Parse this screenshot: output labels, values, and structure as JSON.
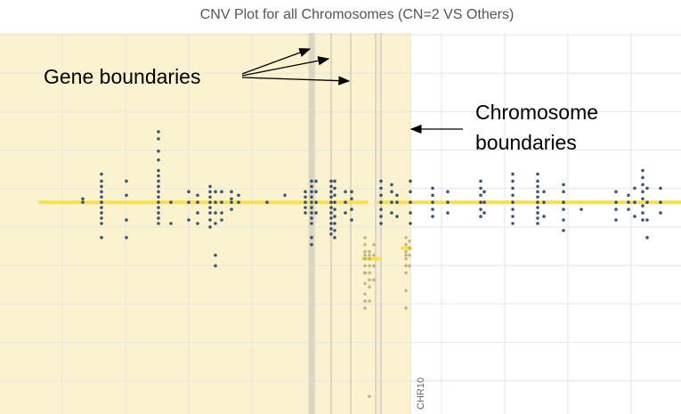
{
  "chart_data": {
    "type": "scatter",
    "title": "CNV Plot for all Chromosomes (CN=2 VS Others)",
    "xlabel": "",
    "ylabel": "",
    "grid": true,
    "chromosome_label": "CHR10",
    "annotations": {
      "gene_boundaries": "Gene boundaries",
      "chromosome_boundaries_line1": "Chromosome",
      "chromosome_boundaries_line2": "boundaries"
    },
    "colors": {
      "highlight_region": "#fbf3cf",
      "gene_boundary_band": "#d9d4c0",
      "segment": "#f7df52",
      "point_normal": "#1f3a5f",
      "point_other": "#b8aa78",
      "grid": "#e6e6e6"
    },
    "series": [
      {
        "name": "",
        "columns": [
          {
            "x": 93,
            "ys": [
              0.0,
              0.1
            ]
          },
          {
            "x": 114,
            "ys": [
              -0.6,
              -0.45,
              -0.3,
              -0.15,
              0.0,
              0.15,
              0.3,
              0.45,
              0.6,
              -1.0,
              0.8
            ]
          },
          {
            "x": 142,
            "ys": [
              -1.0,
              -0.5,
              0.2,
              0.6
            ]
          },
          {
            "x": 178,
            "ys": [
              -0.6,
              -0.45,
              -0.3,
              -0.15,
              0.0,
              0.15,
              0.3,
              0.45,
              0.6,
              0.75,
              0.9,
              1.2,
              1.45,
              1.8,
              2.0
            ]
          },
          {
            "x": 192,
            "ys": [
              -0.6,
              0.0
            ]
          },
          {
            "x": 212,
            "ys": [
              -0.5,
              0.0,
              0.3
            ]
          },
          {
            "x": 222,
            "ys": [
              -0.6,
              -0.3,
              0.0,
              0.2
            ]
          },
          {
            "x": 236,
            "ys": [
              -0.5,
              -0.3,
              -0.15,
              0.0,
              0.15,
              0.3,
              0.45,
              -0.7
            ]
          },
          {
            "x": 242,
            "ys": [
              -0.6,
              -0.3,
              0.0,
              0.3,
              -1.5,
              -1.8
            ]
          },
          {
            "x": 249,
            "ys": [
              -0.3,
              0.0,
              0.3,
              -0.5
            ]
          },
          {
            "x": 260,
            "ys": [
              -0.2,
              0.0,
              0.1,
              0.3
            ]
          },
          {
            "x": 268,
            "ys": [
              0.0,
              0.2
            ]
          },
          {
            "x": 300,
            "ys": [
              0.0
            ]
          },
          {
            "x": 320,
            "ys": [
              0.2
            ]
          },
          {
            "x": 343,
            "ys": [
              -0.3,
              -0.15,
              0.0,
              0.15,
              0.3
            ]
          },
          {
            "x": 350,
            "ys": [
              -0.6,
              -0.45,
              -0.3,
              -0.15,
              0.0,
              0.15,
              0.3,
              0.45,
              0.6,
              -1.0,
              -1.2
            ]
          },
          {
            "x": 355,
            "ys": [
              -0.3,
              0.0,
              0.3,
              0.6
            ]
          },
          {
            "x": 372,
            "ys": [
              -0.9,
              -0.75,
              -0.6,
              -0.45,
              -0.3,
              -0.15,
              0.0,
              0.15,
              0.3,
              0.45,
              0.6
            ]
          },
          {
            "x": 376,
            "ys": [
              -1.0,
              -0.8,
              -0.6,
              -0.4,
              -0.2,
              0.0,
              0.2,
              0.4,
              0.6
            ]
          },
          {
            "x": 388,
            "ys": [
              -0.3,
              0.0,
              0.3
            ]
          },
          {
            "x": 395,
            "ys": [
              -0.5,
              -0.2,
              0.1,
              0.3
            ]
          },
          {
            "x": 428,
            "ys": [
              -0.6,
              -0.4,
              -0.2,
              0.0,
              0.2,
              0.4,
              0.6
            ]
          },
          {
            "x": 440,
            "ys": [
              -0.3,
              0.0,
              0.3,
              0.5
            ]
          },
          {
            "x": 446,
            "ys": [
              -0.4,
              0.0,
              0.2
            ]
          },
          {
            "x": 461,
            "ys": [
              -0.6,
              -0.3,
              0.0,
              0.3,
              0.6
            ]
          },
          {
            "x": 486,
            "ys": [
              -0.4,
              -0.2,
              0.0,
              0.2,
              0.4
            ]
          },
          {
            "x": 503,
            "ys": [
              -0.3,
              0.0,
              0.3
            ]
          },
          {
            "x": 540,
            "ys": [
              -0.4,
              -0.2,
              0.0,
              0.2,
              0.4,
              0.6
            ]
          },
          {
            "x": 544,
            "ys": [
              -0.3,
              0.0,
              0.3
            ]
          },
          {
            "x": 576,
            "ys": [
              -0.6,
              -0.4,
              -0.2,
              0.0,
              0.2,
              0.4,
              0.6,
              0.8
            ]
          },
          {
            "x": 604,
            "ys": [
              -0.6,
              -0.45,
              -0.3,
              -0.15,
              0.0,
              0.15,
              0.3,
              0.45,
              0.6,
              0.8
            ]
          },
          {
            "x": 611,
            "ys": [
              -0.4,
              0.0,
              0.3
            ]
          },
          {
            "x": 633,
            "ys": [
              -0.8,
              -0.5,
              -0.2,
              0.0,
              0.3,
              0.5
            ]
          },
          {
            "x": 653,
            "ys": [
              -0.2
            ]
          },
          {
            "x": 692,
            "ys": [
              -0.5,
              -0.2,
              0.0,
              0.3
            ]
          },
          {
            "x": 706,
            "ys": [
              -0.2,
              0.0,
              0.2
            ]
          },
          {
            "x": 713,
            "ys": [
              -0.4,
              0.0,
              0.4
            ]
          },
          {
            "x": 722,
            "ys": [
              -0.5,
              -0.3,
              -0.1,
              0.1,
              0.3,
              0.5,
              0.7,
              0.9
            ]
          },
          {
            "x": 727,
            "ys": [
              -1.0,
              -0.5,
              0.0,
              0.4
            ]
          },
          {
            "x": 742,
            "ys": [
              -0.3,
              0.0,
              0.4
            ]
          }
        ],
        "color_key": "point_normal"
      },
      {
        "name": "",
        "columns": [
          {
            "x": 410,
            "ys": [
              -2.6,
              -2.3,
              -2.0,
              -1.8,
              -1.6,
              -1.4,
              -1.2,
              -1.0,
              -1.5,
              -3.0,
              -2.8,
              -2.0
            ]
          },
          {
            "x": 415,
            "ys": [
              -2.8,
              -2.4,
              -2.0,
              -1.8,
              -1.6,
              -1.4,
              -5.5,
              -2.2,
              -1.5
            ]
          },
          {
            "x": 420,
            "ys": [
              -2.2,
              -1.8,
              -1.5,
              -1.2
            ]
          },
          {
            "x": 456,
            "ys": [
              -2.0,
              -1.8,
              -1.6,
              -1.4,
              -1.2,
              -1.0,
              -1.5,
              -2.5,
              -3.0
            ]
          },
          {
            "x": 460,
            "ys": [
              -1.5,
              -1.3,
              -1.1,
              -1.8
            ]
          }
        ],
        "color_key": "point_other"
      }
    ],
    "segments": [
      {
        "x_start": 45,
        "x_end": 412,
        "y": 0.0
      },
      {
        "x_start": 408,
        "x_end": 426,
        "y": -1.6
      },
      {
        "x_start": 425,
        "x_end": 765,
        "y": 0.0
      },
      {
        "x_start": 452,
        "x_end": 461,
        "y": -1.3
      }
    ],
    "highlight_x_range": [
      0,
      461
    ],
    "gene_boundary_x": [
      350,
      372,
      394,
      422,
      428
    ],
    "chromosome_boundary_x": 461,
    "ylim": [
      -6.0,
      4.8
    ],
    "xlim": [
      0,
      765
    ]
  }
}
